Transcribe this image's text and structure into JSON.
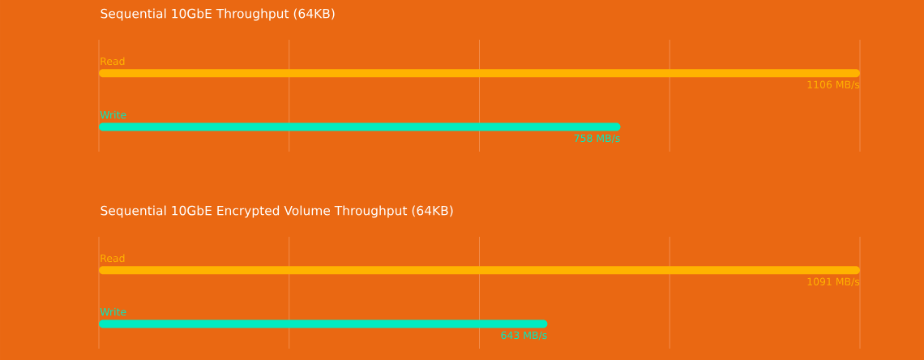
{
  "chart_data": [
    {
      "type": "bar",
      "orientation": "horizontal",
      "title": "Sequential 10GbE Throughput (64KB)",
      "categories": [
        "Read",
        "Write"
      ],
      "values": [
        1106,
        758
      ],
      "colors": [
        "#ffb300",
        "#00ecc0"
      ],
      "value_labels": [
        "1106 MB/s",
        "758 MB/s"
      ],
      "xlim": [
        0,
        1106
      ],
      "xticks": [
        {
          "value": 0,
          "label": null
        },
        {
          "value": 276.5,
          "label": null
        },
        {
          "value": 553,
          "label": null
        },
        {
          "value": 829.5,
          "label": null
        },
        {
          "value": 1106,
          "label": null
        }
      ],
      "grid": "x"
    },
    {
      "type": "bar",
      "orientation": "horizontal",
      "title": "Sequential 10GbE Encrypted Volume Throughput (64KB)",
      "categories": [
        "Read",
        "Write"
      ],
      "values": [
        1091,
        643
      ],
      "colors": [
        "#ffb300",
        "#00ecc0"
      ],
      "value_labels": [
        "1091 MB/s",
        "643 MB/s"
      ],
      "xlim": [
        0,
        1091
      ],
      "xticks": [
        {
          "value": 0,
          "label": null
        },
        {
          "value": 272.75,
          "label": null
        },
        {
          "value": 545.5,
          "label": null
        },
        {
          "value": 818.25,
          "label": null
        },
        {
          "value": 1091,
          "label": null
        }
      ],
      "grid": "x"
    }
  ]
}
